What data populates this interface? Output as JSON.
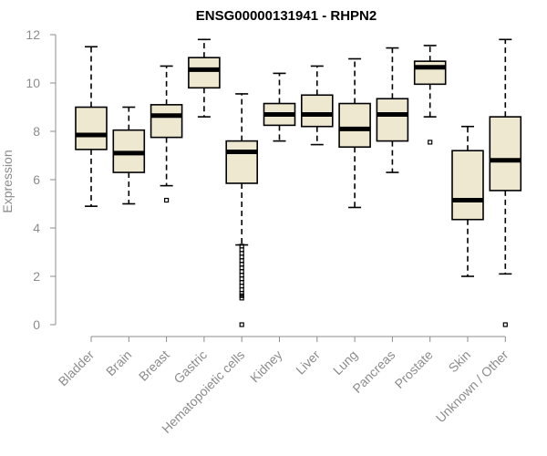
{
  "chart_data": {
    "type": "boxplot",
    "title": "ENSG00000131941 - RHPN2",
    "xlabel": "",
    "ylabel": "Expression",
    "ylim": [
      0,
      12
    ],
    "yticks": [
      0,
      2,
      4,
      6,
      8,
      10,
      12
    ],
    "categories": [
      "Bladder",
      "Brain",
      "Breast",
      "Gastric",
      "Hematopoietic cells",
      "Kidney",
      "Liver",
      "Lung",
      "Pancreas",
      "Prostate",
      "Skin",
      "Unknown / Other"
    ],
    "boxes": [
      {
        "name": "Bladder",
        "min": 4.9,
        "q1": 7.25,
        "median": 7.85,
        "q3": 9.0,
        "max": 11.5,
        "outliers": []
      },
      {
        "name": "Brain",
        "min": 5.0,
        "q1": 6.3,
        "median": 7.1,
        "q3": 8.05,
        "max": 9.0,
        "outliers": []
      },
      {
        "name": "Breast",
        "min": 5.75,
        "q1": 7.75,
        "median": 8.65,
        "q3": 9.1,
        "max": 10.7,
        "outliers": [
          5.15
        ]
      },
      {
        "name": "Gastric",
        "min": 8.6,
        "q1": 9.8,
        "median": 10.55,
        "q3": 11.05,
        "max": 11.8,
        "outliers": []
      },
      {
        "name": "Hematopoietic cells",
        "min": 3.3,
        "q1": 5.85,
        "median": 7.15,
        "q3": 7.6,
        "max": 9.55,
        "outliers": [
          0.0,
          1.1,
          1.2,
          1.3,
          1.45,
          1.6,
          1.75,
          1.9,
          2.05,
          2.2,
          2.35,
          2.5,
          2.65,
          2.8,
          2.95,
          3.1,
          3.25
        ]
      },
      {
        "name": "Kidney",
        "min": 7.6,
        "q1": 8.25,
        "median": 8.7,
        "q3": 9.15,
        "max": 10.4,
        "outliers": []
      },
      {
        "name": "Liver",
        "min": 7.45,
        "q1": 8.2,
        "median": 8.7,
        "q3": 9.5,
        "max": 10.7,
        "outliers": []
      },
      {
        "name": "Lung",
        "min": 4.85,
        "q1": 7.35,
        "median": 8.1,
        "q3": 9.15,
        "max": 11.0,
        "outliers": []
      },
      {
        "name": "Pancreas",
        "min": 6.3,
        "q1": 7.6,
        "median": 8.7,
        "q3": 9.35,
        "max": 11.45,
        "outliers": []
      },
      {
        "name": "Prostate",
        "min": 8.6,
        "q1": 9.95,
        "median": 10.65,
        "q3": 10.9,
        "max": 11.55,
        "outliers": [
          7.55
        ]
      },
      {
        "name": "Skin",
        "min": 2.0,
        "q1": 4.35,
        "median": 5.15,
        "q3": 7.2,
        "max": 8.2,
        "outliers": []
      },
      {
        "name": "Unknown / Other",
        "min": 2.1,
        "q1": 5.55,
        "median": 6.8,
        "q3": 8.6,
        "max": 11.8,
        "outliers": [
          0.0
        ]
      }
    ],
    "colors": {
      "box_fill": "#efe8d0",
      "box_stroke": "#000000",
      "axis": "#8c8c8c",
      "label": "#8c8c8c"
    }
  }
}
